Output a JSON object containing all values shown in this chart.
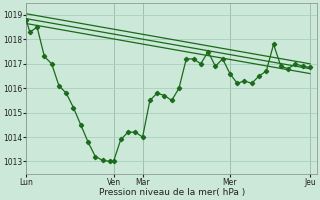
{
  "background_color": "#cce8d8",
  "grid_color": "#aacfbf",
  "line_color": "#1a6b1a",
  "text_color": "#222222",
  "xlabel": "Pression niveau de la mer( hPa )",
  "ylim": [
    1012.5,
    1019.5
  ],
  "yticks": [
    1013,
    1014,
    1015,
    1016,
    1017,
    1018,
    1019
  ],
  "xtick_labels": [
    "Lun",
    "Ven",
    "Mar",
    "Mer",
    "Jeu"
  ],
  "xtick_positions": [
    0,
    24,
    32,
    56,
    78
  ],
  "xlim": [
    0,
    80
  ],
  "vlines": [
    24,
    32,
    56,
    78
  ],
  "line1_x": [
    0,
    1,
    3,
    5,
    7,
    9,
    11,
    13,
    15,
    17,
    19,
    21,
    23,
    24,
    26,
    28,
    30,
    32,
    34,
    36,
    38,
    40,
    42,
    44,
    46,
    48,
    50,
    52,
    54,
    56,
    58,
    60,
    62,
    64,
    66,
    68,
    70,
    72,
    74,
    76,
    78
  ],
  "line1_y": [
    1018.8,
    1018.3,
    1018.5,
    1017.3,
    1017.0,
    1016.1,
    1015.8,
    1015.2,
    1014.5,
    1013.8,
    1013.2,
    1013.05,
    1013.0,
    1013.0,
    1013.9,
    1014.2,
    1014.2,
    1014.0,
    1015.5,
    1015.8,
    1015.7,
    1015.5,
    1016.0,
    1017.2,
    1017.2,
    1017.0,
    1017.5,
    1016.9,
    1017.2,
    1016.6,
    1016.2,
    1016.3,
    1016.2,
    1016.5,
    1016.7,
    1017.8,
    1016.9,
    1016.8,
    1017.0,
    1016.9,
    1016.85
  ],
  "trend1_x": [
    0,
    78
  ],
  "trend1_y": [
    1019.05,
    1017.0
  ],
  "trend2_x": [
    0,
    78
  ],
  "trend2_y": [
    1018.85,
    1016.8
  ],
  "trend3_x": [
    0,
    78
  ],
  "trend3_y": [
    1018.65,
    1016.6
  ]
}
